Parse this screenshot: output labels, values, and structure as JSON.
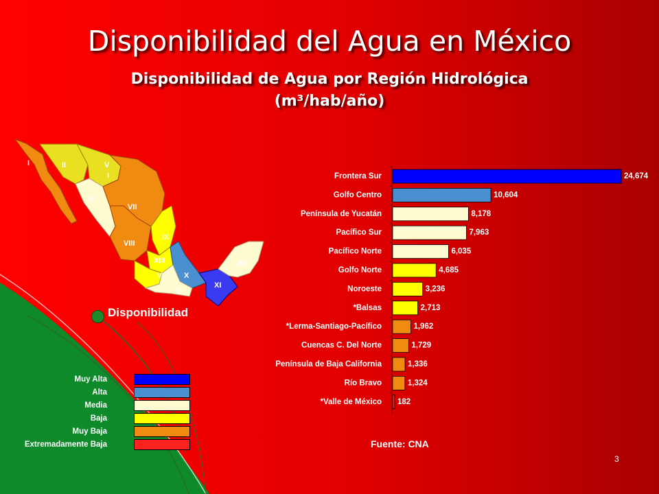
{
  "title": "Disponibilidad del Agua en México",
  "subtitle": "Disponibilidad de Agua por Región Hidrológica",
  "units": "(m³/hab/año)",
  "legend_title": "Disponibilidad",
  "source": "Fuente: CNA",
  "page_number": "3",
  "colors": {
    "background": "#e00000",
    "muy_alta": "#0000ff",
    "alta": "#4a8fcf",
    "media": "#fffbd0",
    "baja": "#ffff00",
    "muy_baja": "#f08a10",
    "extremadamente_baja": "#ff2020",
    "green": "#0e8a2a"
  },
  "legend": [
    {
      "label": "Muy Alta",
      "color": "#0000ff"
    },
    {
      "label": "Alta",
      "color": "#4a8fcf"
    },
    {
      "label": "Media",
      "color": "#fffbd0"
    },
    {
      "label": "Baja",
      "color": "#ffff00"
    },
    {
      "label": "Muy Baja",
      "color": "#f08a10"
    },
    {
      "label": "Extremadamente  Baja",
      "color": "#ff2020"
    }
  ],
  "map_regions": [
    "I",
    "II",
    "V",
    "I",
    "III",
    "VII",
    "IX",
    "VIII",
    "XIII",
    "XII",
    "V",
    "X",
    "XI",
    "V"
  ],
  "chart_data": {
    "type": "bar",
    "orientation": "horizontal",
    "title": "Disponibilidad de Agua por Región Hidrológica",
    "units": "(m³/hab/año)",
    "categories": [
      "Frontera  Sur",
      "Golfo Centro",
      "Península de Yucatán",
      "Pacífico Sur",
      "Pacífico Norte",
      "Golfo Norte",
      "Noroeste",
      "*Balsas",
      "*Lerma-Santiago-Pacífico",
      "Cuencas  C. Del Norte",
      "Península de Baja California",
      "Río Bravo",
      "*Valle de México"
    ],
    "values": [
      24674,
      10604,
      8178,
      7963,
      6035,
      4685,
      3236,
      2713,
      1962,
      1729,
      1336,
      1324,
      182
    ],
    "value_labels": [
      "24,674",
      "10,604",
      "8,178",
      "7,963",
      "6,035",
      "4,685",
      "3,236",
      "2,713",
      "1,962",
      "1,729",
      "1,336",
      "1,324",
      "182"
    ],
    "bar_colors": [
      "#0000ff",
      "#4a8fcf",
      "#fffbd0",
      "#fffbd0",
      "#fffbd0",
      "#ffff00",
      "#ffff00",
      "#ffff00",
      "#f08a10",
      "#f08a10",
      "#f08a10",
      "#f08a10",
      "#ff2020"
    ],
    "xlim": [
      0,
      24674
    ],
    "grid": false
  }
}
